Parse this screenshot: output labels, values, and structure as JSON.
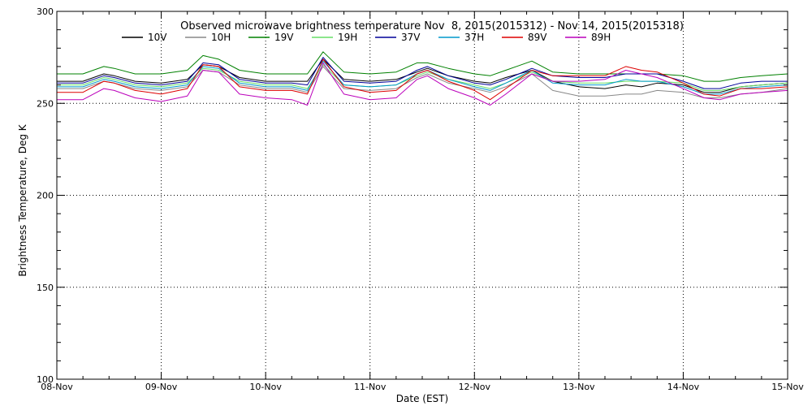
{
  "chart_data": {
    "type": "line",
    "title": "Observed microwave brightness temperature Nov  8, 2015(2015312) - Nov 14, 2015(2015318)",
    "xlabel": "Date (EST)",
    "ylabel": "Brightness Temperature, Deg K",
    "x_ticks": [
      "08-Nov",
      "09-Nov",
      "10-Nov",
      "11-Nov",
      "12-Nov",
      "13-Nov",
      "14-Nov",
      "15-Nov"
    ],
    "y_ticks": [
      100,
      150,
      200,
      250,
      300
    ],
    "xlim": [
      0,
      7
    ],
    "ylim": [
      100,
      300
    ],
    "grid": true,
    "legend_position": "top",
    "x_unit": "days from 08-Nov",
    "x": [
      0,
      0.25,
      0.45,
      0.55,
      0.75,
      1.0,
      1.25,
      1.4,
      1.55,
      1.75,
      2.0,
      2.25,
      2.4,
      2.55,
      2.75,
      3.0,
      3.25,
      3.45,
      3.55,
      3.75,
      4.0,
      4.15,
      4.3,
      4.55,
      4.75,
      5.0,
      5.25,
      5.45,
      5.6,
      5.75,
      6.0,
      6.2,
      6.35,
      6.55,
      6.75,
      7.0
    ],
    "series": [
      {
        "name": "10V",
        "color": "#000000",
        "values": [
          262,
          262,
          266,
          265,
          262,
          261,
          263,
          271,
          270,
          264,
          262,
          262,
          262,
          274,
          263,
          262,
          263,
          267,
          269,
          265,
          262,
          261,
          264,
          268,
          262,
          259,
          258,
          260,
          259,
          261,
          260,
          256,
          256,
          259,
          260,
          261
        ]
      },
      {
        "name": "10H",
        "color": "#888888",
        "values": [
          258,
          258,
          262,
          261,
          258,
          257,
          259,
          268,
          267,
          260,
          258,
          258,
          256,
          270,
          258,
          257,
          258,
          264,
          266,
          261,
          258,
          256,
          259,
          266,
          257,
          254,
          254,
          255,
          255,
          257,
          256,
          253,
          253,
          255,
          256,
          258
        ]
      },
      {
        "name": "19V",
        "color": "#008000",
        "values": [
          266,
          266,
          270,
          269,
          266,
          266,
          268,
          276,
          274,
          268,
          266,
          266,
          266,
          278,
          267,
          266,
          267,
          272,
          272,
          269,
          266,
          265,
          268,
          273,
          267,
          266,
          266,
          266,
          266,
          266,
          265,
          262,
          262,
          264,
          265,
          266
        ]
      },
      {
        "name": "19H",
        "color": "#66dd66",
        "values": [
          260,
          260,
          264,
          263,
          260,
          259,
          261,
          269,
          268,
          262,
          260,
          260,
          258,
          271,
          260,
          259,
          260,
          265,
          267,
          263,
          260,
          258,
          261,
          267,
          262,
          261,
          261,
          262,
          262,
          262,
          261,
          257,
          257,
          259,
          260,
          261
        ]
      },
      {
        "name": "37V",
        "color": "#000099",
        "values": [
          261,
          261,
          265,
          264,
          261,
          260,
          262,
          272,
          271,
          263,
          261,
          261,
          260,
          275,
          262,
          261,
          262,
          268,
          270,
          265,
          261,
          260,
          263,
          269,
          265,
          264,
          264,
          266,
          266,
          266,
          262,
          258,
          258,
          261,
          262,
          262
        ]
      },
      {
        "name": "37H",
        "color": "#0099cc",
        "values": [
          259,
          259,
          263,
          262,
          259,
          258,
          260,
          270,
          269,
          261,
          259,
          259,
          257,
          273,
          260,
          259,
          260,
          266,
          268,
          263,
          259,
          257,
          261,
          268,
          261,
          260,
          260,
          263,
          262,
          262,
          259,
          255,
          255,
          258,
          259,
          260
        ]
      },
      {
        "name": "89V",
        "color": "#dd0000",
        "values": [
          256,
          256,
          262,
          261,
          257,
          255,
          258,
          271,
          270,
          259,
          257,
          257,
          255,
          274,
          259,
          256,
          257,
          266,
          268,
          262,
          257,
          252,
          258,
          268,
          265,
          265,
          265,
          270,
          268,
          267,
          261,
          255,
          254,
          258,
          258,
          259
        ]
      },
      {
        "name": "89H",
        "color": "#bb00bb",
        "values": [
          252,
          252,
          258,
          257,
          253,
          251,
          254,
          268,
          267,
          255,
          253,
          252,
          249,
          272,
          255,
          252,
          253,
          263,
          265,
          258,
          253,
          249,
          255,
          266,
          262,
          262,
          263,
          268,
          266,
          264,
          258,
          253,
          252,
          255,
          256,
          257
        ]
      }
    ]
  }
}
